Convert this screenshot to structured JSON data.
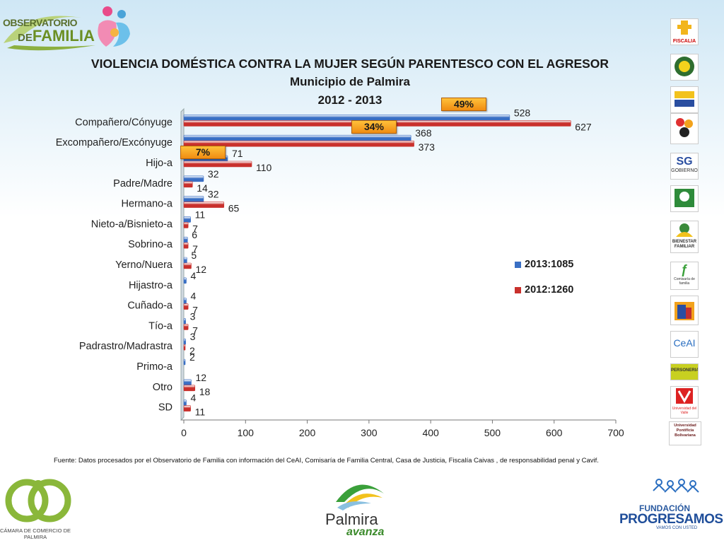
{
  "header": {
    "logo_line1": "OBSERVATORIO",
    "logo_line2_prefix": "DE",
    "logo_line2_main": "FAMILIA"
  },
  "chart_data": {
    "type": "bar",
    "orientation": "horizontal",
    "title": "VIOLENCIA DOMÉSTICA CONTRA LA MUJER SEGÚN PARENTESCO CON EL AGRESOR",
    "subtitle": "Municipio de Palmira",
    "subtitle2": "2012 - 2013",
    "categories": [
      "Compañero/Cónyuge",
      "Excompañero/Excónyuge",
      "Hijo-a",
      "Padre/Madre",
      "Hermano-a",
      "Nieto-a/Bisnieto-a",
      "Sobrino-a",
      "Yerno/Nuera",
      "Hijastro-a",
      "Cuñado-a",
      "Tío-a",
      "Padrastro/Madrastra",
      "Primo-a",
      "Otro",
      "SD"
    ],
    "series": [
      {
        "name": "2013:1085",
        "color": "#3a6fc4",
        "values": [
          528,
          368,
          71,
          32,
          32,
          11,
          6,
          5,
          4,
          4,
          3,
          3,
          2,
          12,
          4
        ]
      },
      {
        "name": "2012:1260",
        "color": "#c9302c",
        "values": [
          627,
          373,
          110,
          14,
          65,
          7,
          7,
          12,
          null,
          7,
          7,
          2,
          null,
          18,
          11
        ]
      }
    ],
    "xlim": [
      0,
      700
    ],
    "xticks": [
      0,
      100,
      200,
      300,
      400,
      500,
      600,
      700
    ],
    "legend_position": "right",
    "annotations": [
      "49%",
      "34%",
      "7%"
    ]
  },
  "source": "Fuente: Datos procesados por el Observatorio de  Familia con información del CeAI, Comisaría de Familia Central, Casa de Justicia, Fiscalía Caivas , de responsabilidad penal y Cavif.",
  "sidebar_logos": [
    {
      "name": "fiscalia-logo",
      "text": "FISCALIA"
    },
    {
      "name": "policia-logo",
      "text": ""
    },
    {
      "name": "icbf-logo",
      "text": ""
    },
    {
      "name": "secretaria-logo",
      "text": ""
    },
    {
      "name": "gobierno-logo",
      "text": "SG GOBIERNO"
    },
    {
      "name": "salud-logo",
      "text": ""
    },
    {
      "name": "bienestar-familiar-logo",
      "text": "BIENESTAR FAMILIAR"
    },
    {
      "name": "comisaria-logo",
      "text": "Comisaría de familia"
    },
    {
      "name": "casa-justicia-logo",
      "text": ""
    },
    {
      "name": "ceai-logo",
      "text": "CeAI"
    },
    {
      "name": "personeria-logo",
      "text": "PERSONERIA"
    },
    {
      "name": "univalle-logo",
      "text": "Universidad del Valle"
    },
    {
      "name": "upb-logo",
      "text": "Universidad Pontificia Bolivariana"
    }
  ],
  "footer": {
    "ccp_text": "CÁMARA DE COMERCIO DE PALMIRA",
    "palmira_text": "Palmira",
    "palmira_sub": "avanza",
    "prog_line1": "FUNDACIÓN",
    "prog_line2": "PROGRESAMOS",
    "prog_line3": "VAMOS CON USTED"
  }
}
